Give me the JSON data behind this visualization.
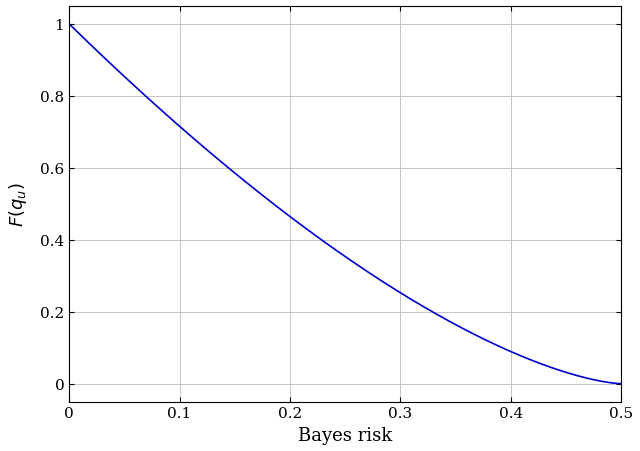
{
  "xlabel": "Bayes risk",
  "ylabel": "$F(q_u)$",
  "line_color": "#0000cd",
  "line_width": 1.2,
  "xlim": [
    0,
    0.5
  ],
  "ylim": [
    -0.05,
    1.05
  ],
  "xticks": [
    0,
    0.1,
    0.2,
    0.3,
    0.4,
    0.5
  ],
  "yticks": [
    0,
    0.2,
    0.4,
    0.6,
    0.8,
    1.0
  ],
  "grid_color": "#bbbbbb",
  "background_color": "#ffffff",
  "xlabel_fontsize": 13,
  "ylabel_fontsize": 13,
  "tick_fontsize": 11,
  "curve_power": 1.5
}
